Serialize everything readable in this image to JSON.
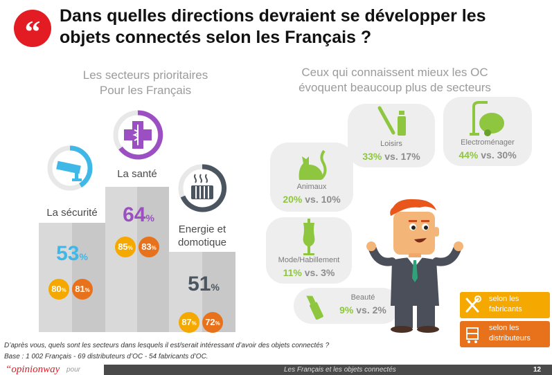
{
  "header": {
    "quote_mark": "“",
    "title_line1": "Dans quelles directions devraient se développer les",
    "title_line2": "objets connectés selon les Français ?"
  },
  "left": {
    "subtitle_line1": "Les secteurs prioritaires",
    "subtitle_line2": "Pour les Français",
    "sectors": [
      {
        "label": "La sécurité",
        "main": "53",
        "fabricants": "80",
        "distributeurs": "81",
        "color": "#3fb8e8",
        "icon": "camera-icon"
      },
      {
        "label": "La santé",
        "main": "64",
        "fabricants": "85",
        "distributeurs": "83",
        "color": "#9b4fc3",
        "icon": "health-cross-icon"
      },
      {
        "label_line1": "Energie et",
        "label_line2": "domotique",
        "main": "51",
        "fabricants": "87",
        "distributeurs": "72",
        "color": "#4a5560",
        "icon": "radiator-icon"
      }
    ],
    "pct_unit": "%"
  },
  "right": {
    "subtitle_line1": "Ceux qui connaissent mieux les OC",
    "subtitle_line2": "évoquent beaucoup plus de secteurs",
    "vs": "vs.",
    "bubbles": [
      {
        "label": "Animaux",
        "high": "20%",
        "low": "10%",
        "icon": "cat-icon"
      },
      {
        "label": "Loisirs",
        "high": "33%",
        "low": "17%",
        "icon": "paintbrush-icon"
      },
      {
        "label": "Electroménager",
        "high": "44%",
        "low": "30%",
        "icon": "vacuum-icon"
      },
      {
        "label": "Mode/Habillement",
        "high": "11%",
        "low": "3%",
        "icon": "mannequin-icon"
      },
      {
        "label": "Beauté",
        "high": "9%",
        "low": "2%",
        "icon": "lipstick-icon"
      }
    ],
    "accent_green": "#8ec63f"
  },
  "legend": {
    "fabricants_line1": "selon les",
    "fabricants_line2": "fabricants",
    "distributeurs_line1": "selon les",
    "distributeurs_line2": "distributeurs",
    "fabricants_color": "#f5a800",
    "distributeurs_color": "#e8721c"
  },
  "notes": {
    "question": "D’après vous, quels sont les secteurs dans lesquels il est/serait intéressant d’avoir des objets connectés ?",
    "base": "Base : 1 002 Français - 69 distributeurs d’OC  - 54 fabricants d’OC."
  },
  "footer": {
    "logo": "“opinionway",
    "pour": "pour",
    "text": "Les Français et les objets connectés",
    "page": "12"
  }
}
